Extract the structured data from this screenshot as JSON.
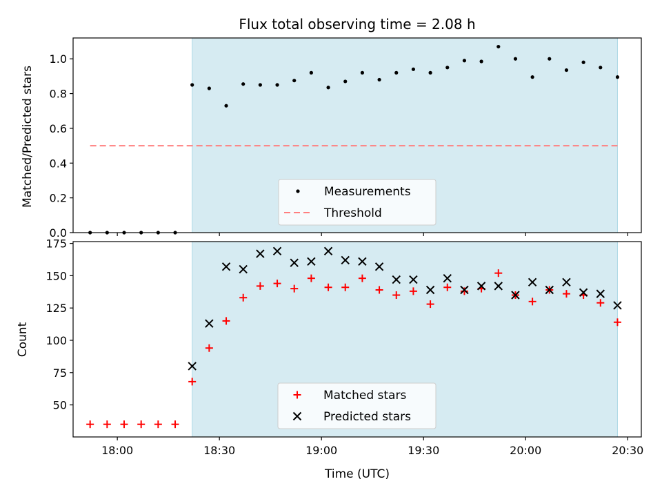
{
  "title": "Flux total observing time = 2.08 h",
  "colors": {
    "shade": "#add8e6",
    "measurement": "#000000",
    "threshold": "#ff7f7f",
    "matched": "#ff0000",
    "predicted": "#000000"
  },
  "chart_data": [
    {
      "type": "scatter",
      "panel": "top",
      "title": "Flux total observing time = 2.08 h",
      "xlabel": "",
      "ylabel": "Matched/Predicted stars",
      "x_range": [
        "17:47",
        "20:34"
      ],
      "ylim": [
        0,
        1.12
      ],
      "yticks": [
        0.0,
        0.2,
        0.4,
        0.6,
        0.8,
        1.0
      ],
      "ytick_labels": [
        "0.0",
        "0.2",
        "0.4",
        "0.6",
        "0.8",
        "1.0"
      ],
      "shaded_interval": [
        "18:22",
        "20:27"
      ],
      "threshold": {
        "label": "Threshold",
        "value": 0.5,
        "x_start": "17:52",
        "x_end": "20:27"
      },
      "legend": {
        "placement": "lower-center",
        "entries": [
          "Measurements",
          "Threshold"
        ]
      },
      "series": [
        {
          "name": "Measurements",
          "marker": "dot",
          "points": [
            [
              "17:52",
              0.0
            ],
            [
              "17:57",
              0.0
            ],
            [
              "18:02",
              0.0
            ],
            [
              "18:07",
              0.0
            ],
            [
              "18:12",
              0.0
            ],
            [
              "18:17",
              0.0
            ],
            [
              "18:22",
              0.85
            ],
            [
              "18:27",
              0.83
            ],
            [
              "18:32",
              0.73
            ],
            [
              "18:37",
              0.855
            ],
            [
              "18:42",
              0.85
            ],
            [
              "18:47",
              0.85
            ],
            [
              "18:52",
              0.875
            ],
            [
              "18:57",
              0.92
            ],
            [
              "19:02",
              0.835
            ],
            [
              "19:07",
              0.87
            ],
            [
              "19:12",
              0.92
            ],
            [
              "19:17",
              0.88
            ],
            [
              "19:22",
              0.92
            ],
            [
              "19:27",
              0.94
            ],
            [
              "19:32",
              0.92
            ],
            [
              "19:37",
              0.95
            ],
            [
              "19:42",
              0.99
            ],
            [
              "19:47",
              0.985
            ],
            [
              "19:52",
              1.07
            ],
            [
              "19:57",
              1.0
            ],
            [
              "20:02",
              0.895
            ],
            [
              "20:07",
              1.0
            ],
            [
              "20:12",
              0.935
            ],
            [
              "20:17",
              0.98
            ],
            [
              "20:22",
              0.95
            ],
            [
              "20:27",
              0.895
            ]
          ]
        }
      ]
    },
    {
      "type": "scatter",
      "panel": "bottom",
      "xlabel": "Time (UTC)",
      "ylabel": "Count",
      "x_range": [
        "17:47",
        "20:34"
      ],
      "xticks": [
        "18:00",
        "18:30",
        "19:00",
        "19:30",
        "20:00",
        "20:30"
      ],
      "ylim": [
        25.2,
        176.4
      ],
      "yticks": [
        50,
        75,
        100,
        125,
        150,
        175
      ],
      "ytick_labels": [
        "50",
        "75",
        "100",
        "125",
        "150",
        "175"
      ],
      "shaded_interval": [
        "18:22",
        "20:27"
      ],
      "legend": {
        "placement": "lower-center",
        "entries": [
          "Matched stars",
          "Predicted stars"
        ]
      },
      "series": [
        {
          "name": "Matched stars",
          "marker": "plus",
          "points": [
            [
              "17:52",
              35
            ],
            [
              "17:57",
              35
            ],
            [
              "18:02",
              35
            ],
            [
              "18:07",
              35
            ],
            [
              "18:12",
              35
            ],
            [
              "18:17",
              35
            ],
            [
              "18:22",
              68
            ],
            [
              "18:27",
              94
            ],
            [
              "18:32",
              115
            ],
            [
              "18:37",
              133
            ],
            [
              "18:42",
              142
            ],
            [
              "18:47",
              144
            ],
            [
              "18:52",
              140
            ],
            [
              "18:57",
              148
            ],
            [
              "19:02",
              141
            ],
            [
              "19:07",
              141
            ],
            [
              "19:12",
              148
            ],
            [
              "19:17",
              139
            ],
            [
              "19:22",
              135
            ],
            [
              "19:27",
              138
            ],
            [
              "19:32",
              128
            ],
            [
              "19:37",
              141
            ],
            [
              "19:42",
              138
            ],
            [
              "19:47",
              140
            ],
            [
              "19:52",
              152
            ],
            [
              "19:57",
              135
            ],
            [
              "20:02",
              130
            ],
            [
              "20:07",
              139
            ],
            [
              "20:12",
              136
            ],
            [
              "20:17",
              135
            ],
            [
              "20:22",
              129
            ],
            [
              "20:27",
              114
            ]
          ]
        },
        {
          "name": "Predicted stars",
          "marker": "x",
          "points": [
            [
              "18:22",
              80
            ],
            [
              "18:27",
              113
            ],
            [
              "18:32",
              157
            ],
            [
              "18:37",
              155
            ],
            [
              "18:42",
              167
            ],
            [
              "18:47",
              169
            ],
            [
              "18:52",
              160
            ],
            [
              "18:57",
              161
            ],
            [
              "19:02",
              169
            ],
            [
              "19:07",
              162
            ],
            [
              "19:12",
              161
            ],
            [
              "19:17",
              157
            ],
            [
              "19:22",
              147
            ],
            [
              "19:27",
              147
            ],
            [
              "19:32",
              139
            ],
            [
              "19:37",
              148
            ],
            [
              "19:42",
              139
            ],
            [
              "19:47",
              142
            ],
            [
              "19:52",
              142
            ],
            [
              "19:57",
              135
            ],
            [
              "20:02",
              145
            ],
            [
              "20:07",
              139
            ],
            [
              "20:12",
              145
            ],
            [
              "20:17",
              137
            ],
            [
              "20:22",
              136
            ],
            [
              "20:27",
              127
            ]
          ]
        }
      ]
    }
  ]
}
